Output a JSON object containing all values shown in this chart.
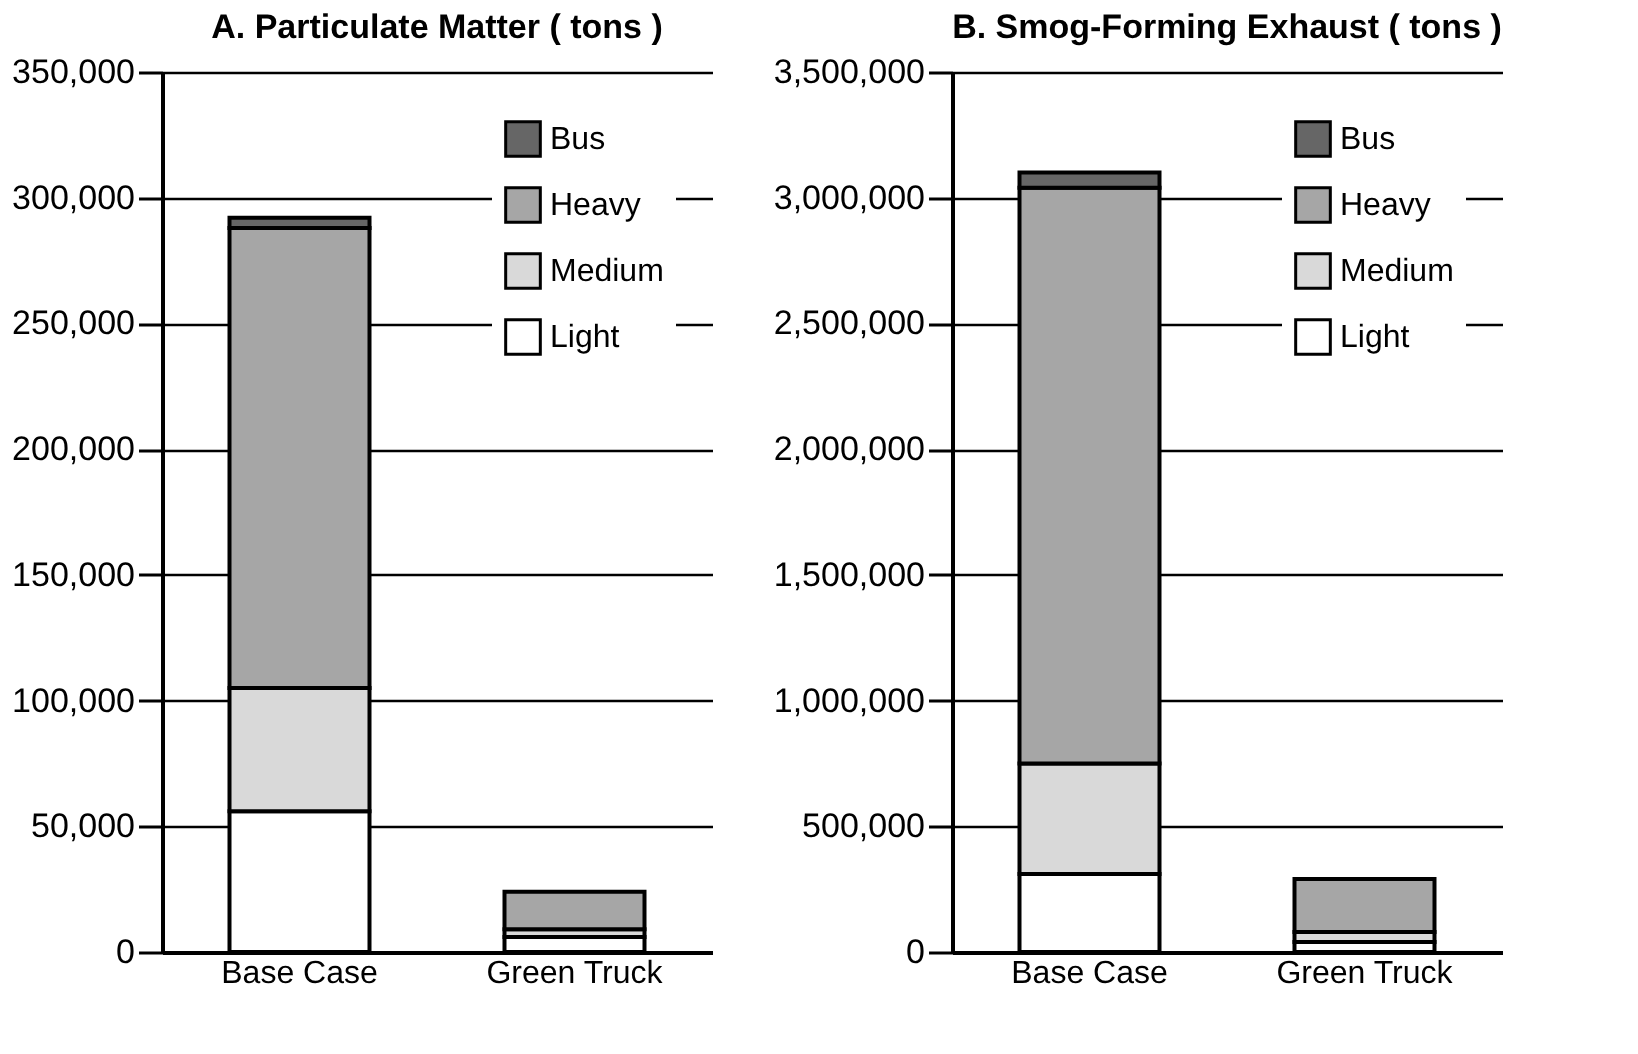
{
  "chart_data": [
    {
      "type": "bar",
      "title": "A. Particulate Matter ( tons )",
      "stacked": true,
      "categories": [
        "Base Case",
        "Green Truck"
      ],
      "series": [
        {
          "name": "Light",
          "color": "#ffffff",
          "values": [
            56000,
            6000
          ]
        },
        {
          "name": "Medium",
          "color": "#d9d9d9",
          "values": [
            49000,
            3000
          ]
        },
        {
          "name": "Heavy",
          "color": "#a6a6a6",
          "values": [
            183000,
            15000
          ]
        },
        {
          "name": "Bus",
          "color": "#666666",
          "values": [
            4000,
            null
          ]
        }
      ],
      "ylim": [
        0,
        350000
      ],
      "yticks": [
        0,
        {
          "value": 50000,
          "label": "50,000"
        },
        {
          "value": 100000,
          "label": "100,000"
        },
        {
          "value": 150000,
          "label": "150,000"
        },
        {
          "value": 200000,
          "label": "200,000"
        },
        {
          "value": 250000,
          "label": "250,000"
        },
        {
          "value": 300000,
          "label": "300,000"
        },
        {
          "value": 350000,
          "label": "350,000"
        }
      ],
      "grid": "y",
      "legend": "top right"
    },
    {
      "type": "bar",
      "title": "B. Smog-Forming Exhaust ( tons )",
      "stacked": true,
      "categories": [
        "Base Case",
        "Green Truck"
      ],
      "series": [
        {
          "name": "Light",
          "color": "#ffffff",
          "values": [
            310000,
            40000
          ]
        },
        {
          "name": "Medium",
          "color": "#d9d9d9",
          "values": [
            440000,
            40000
          ]
        },
        {
          "name": "Heavy",
          "color": "#a6a6a6",
          "values": [
            2290000,
            210000
          ]
        },
        {
          "name": "Bus",
          "color": "#666666",
          "values": [
            60000,
            null
          ]
        }
      ],
      "ylim": [
        0,
        3500000
      ],
      "yticks": [
        0,
        {
          "value": 500000,
          "label": "500,000"
        },
        {
          "value": 1000000,
          "label": "1,000,000"
        },
        {
          "value": 1500000,
          "label": "1,500,000"
        },
        {
          "value": 2000000,
          "label": "2,000,000"
        },
        {
          "value": 2500000,
          "label": "2,500,000"
        },
        {
          "value": 3000000,
          "label": "3,000,000"
        },
        {
          "value": 3500000,
          "label": "3,500,000"
        }
      ],
      "grid": "y",
      "legend": "top right"
    }
  ]
}
